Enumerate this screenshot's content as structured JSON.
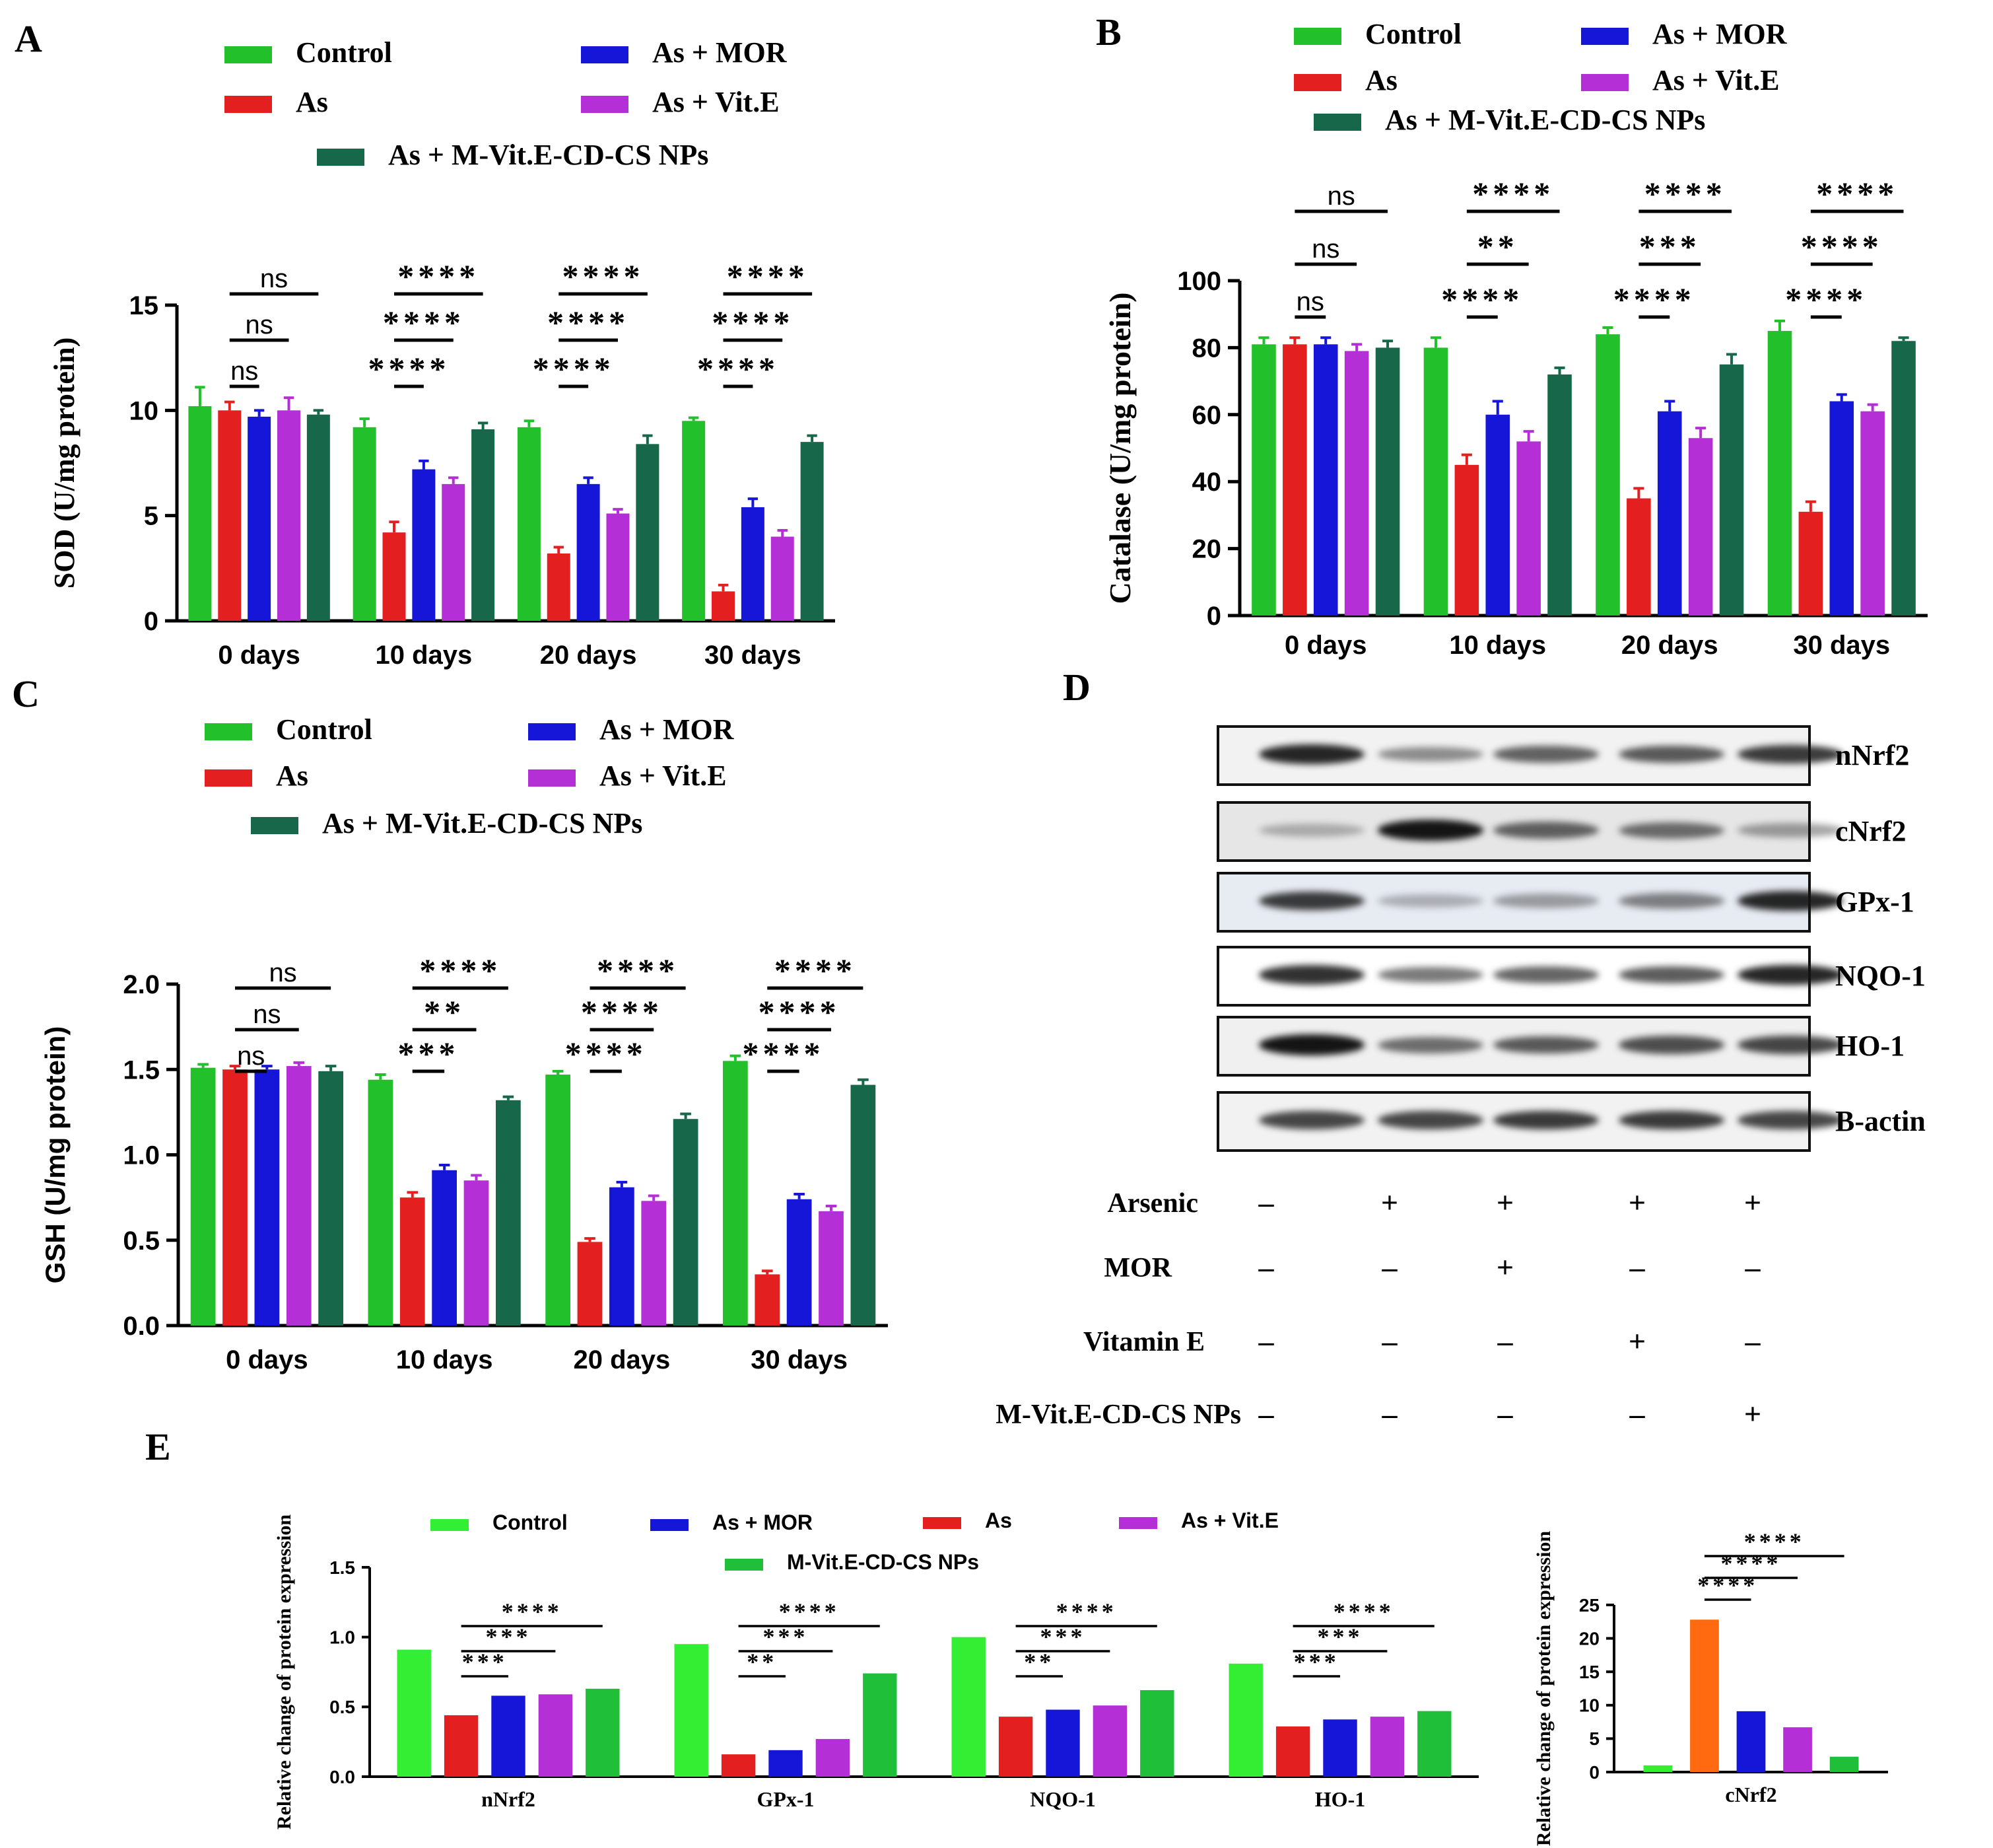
{
  "panel_letters": [
    "A",
    "B",
    "C",
    "D",
    "E"
  ],
  "colors": {
    "control": "#22c02a",
    "as": "#e41f1f",
    "mor": "#1616d8",
    "vite": "#b52fd6",
    "nps": "#17684a",
    "e_control": "#33ee33",
    "e_nps": "#1fbf3a",
    "e_as_cnrf2": "#ff6a10"
  },
  "chart_data": [
    {
      "panel": "A",
      "type": "bar",
      "ylabel": "SOD (U/mg protein)",
      "xlabel": "",
      "ylim": [
        0,
        15
      ],
      "yticks": [
        "0",
        "5",
        "10",
        "15"
      ],
      "categories": [
        "0 days",
        "10 days",
        "20 days",
        "30 days"
      ],
      "legend": [
        "Control",
        "As + MOR",
        "As",
        "As + Vit.E",
        "As + M-Vit.E-CD-CS NPs"
      ],
      "series": [
        {
          "name": "Control",
          "color_key": "control",
          "values": [
            10.2,
            9.2,
            9.2,
            9.5
          ],
          "errors": [
            0.9,
            0.4,
            0.3,
            0.15
          ]
        },
        {
          "name": "As",
          "color_key": "as",
          "values": [
            10.0,
            4.2,
            3.2,
            1.4
          ],
          "errors": [
            0.4,
            0.5,
            0.3,
            0.3
          ]
        },
        {
          "name": "As + MOR",
          "color_key": "mor",
          "values": [
            9.7,
            7.2,
            6.5,
            5.4
          ],
          "errors": [
            0.3,
            0.4,
            0.3,
            0.4
          ]
        },
        {
          "name": "As + Vit.E",
          "color_key": "vite",
          "values": [
            10.0,
            6.5,
            5.1,
            4.0
          ],
          "errors": [
            0.6,
            0.3,
            0.2,
            0.3
          ]
        },
        {
          "name": "As + M-Vit.E-CD-CS NPs",
          "color_key": "nps",
          "values": [
            9.8,
            9.1,
            8.4,
            8.5
          ],
          "errors": [
            0.2,
            0.3,
            0.4,
            0.3
          ]
        }
      ],
      "significance": [
        [
          "ns",
          "ns",
          "ns"
        ],
        [
          "****",
          "****",
          "****"
        ],
        [
          "****",
          "****",
          "****"
        ],
        [
          "****",
          "****",
          "****"
        ]
      ]
    },
    {
      "panel": "B",
      "type": "bar",
      "ylabel": "Catalase (U/mg protein)",
      "xlabel": "",
      "ylim": [
        0,
        100
      ],
      "yticks": [
        "0",
        "20",
        "40",
        "60",
        "80",
        "100"
      ],
      "categories": [
        "0 days",
        "10 days",
        "20 days",
        "30 days"
      ],
      "legend": [
        "Control",
        "As + MOR",
        "As",
        "As + Vit.E",
        "As + M-Vit.E-CD-CS NPs"
      ],
      "series": [
        {
          "name": "Control",
          "color_key": "control",
          "values": [
            81,
            80,
            84,
            85
          ],
          "errors": [
            2,
            3,
            2,
            3
          ]
        },
        {
          "name": "As",
          "color_key": "as",
          "values": [
            81,
            45,
            35,
            31
          ],
          "errors": [
            2,
            3,
            3,
            3
          ]
        },
        {
          "name": "As + MOR",
          "color_key": "mor",
          "values": [
            81,
            60,
            61,
            64
          ],
          "errors": [
            2,
            4,
            3,
            2
          ]
        },
        {
          "name": "As + Vit.E",
          "color_key": "vite",
          "values": [
            79,
            52,
            53,
            61
          ],
          "errors": [
            2,
            3,
            3,
            2
          ]
        },
        {
          "name": "As + M-Vit.E-CD-CS NPs",
          "color_key": "nps",
          "values": [
            80,
            72,
            75,
            82
          ],
          "errors": [
            2,
            2,
            3,
            1
          ]
        }
      ],
      "significance": [
        [
          "ns",
          "ns",
          "ns"
        ],
        [
          "****",
          "**",
          "****"
        ],
        [
          "****",
          "***",
          "****"
        ],
        [
          "****",
          "****",
          "****"
        ]
      ]
    },
    {
      "panel": "C",
      "type": "bar",
      "ylabel": "GSH (U/mg protein)",
      "xlabel": "",
      "ylim": [
        0,
        2.0
      ],
      "yticks": [
        "0.0",
        "0.5",
        "1.0",
        "1.5",
        "2.0"
      ],
      "categories": [
        "0 days",
        "10 days",
        "20 days",
        "30 days"
      ],
      "legend": [
        "Control",
        "As + MOR",
        "As",
        "As + Vit.E",
        "As + M-Vit.E-CD-CS NPs"
      ],
      "series": [
        {
          "name": "Control",
          "color_key": "control",
          "values": [
            1.51,
            1.44,
            1.47,
            1.55
          ],
          "errors": [
            0.02,
            0.03,
            0.02,
            0.03
          ]
        },
        {
          "name": "As",
          "color_key": "as",
          "values": [
            1.5,
            0.75,
            0.49,
            0.3
          ],
          "errors": [
            0.02,
            0.03,
            0.02,
            0.02
          ]
        },
        {
          "name": "As + MOR",
          "color_key": "mor",
          "values": [
            1.5,
            0.91,
            0.81,
            0.74
          ],
          "errors": [
            0.02,
            0.03,
            0.03,
            0.03
          ]
        },
        {
          "name": "As + Vit.E",
          "color_key": "vite",
          "values": [
            1.52,
            0.85,
            0.73,
            0.67
          ],
          "errors": [
            0.02,
            0.03,
            0.03,
            0.03
          ]
        },
        {
          "name": "As + M-Vit.E-CD-CS NPs",
          "color_key": "nps",
          "values": [
            1.49,
            1.32,
            1.21,
            1.41
          ],
          "errors": [
            0.03,
            0.02,
            0.03,
            0.03
          ]
        }
      ],
      "significance": [
        [
          "ns",
          "ns",
          "ns"
        ],
        [
          "***",
          "**",
          "****"
        ],
        [
          "****",
          "****",
          "****"
        ],
        [
          "****",
          "****",
          "****"
        ]
      ]
    },
    {
      "panel": "E-left",
      "type": "bar",
      "ylabel": "Relative change of protein expression",
      "xlabel": "",
      "ylim": [
        0,
        1.5
      ],
      "yticks": [
        "0.0",
        "0.5",
        "1.0",
        "1.5"
      ],
      "categories": [
        "nNrf2",
        "GPx-1",
        "NQO-1",
        "HO-1"
      ],
      "legend": [
        "Control",
        "As + MOR",
        "As",
        "As + Vit.E",
        "M-Vit.E-CD-CS NPs"
      ],
      "series": [
        {
          "name": "Control",
          "color_key": "e_control",
          "values": [
            0.91,
            0.95,
            1.0,
            0.81
          ]
        },
        {
          "name": "As",
          "color_key": "as",
          "values": [
            0.44,
            0.16,
            0.43,
            0.36
          ]
        },
        {
          "name": "As + MOR",
          "color_key": "mor",
          "values": [
            0.58,
            0.19,
            0.48,
            0.41
          ]
        },
        {
          "name": "As + Vit.E",
          "color_key": "vite",
          "values": [
            0.59,
            0.27,
            0.51,
            0.43
          ]
        },
        {
          "name": "M-Vit.E-CD-CS NPs",
          "color_key": "e_nps",
          "values": [
            0.63,
            0.74,
            0.62,
            0.47
          ]
        }
      ],
      "significance": [
        [
          "***",
          "***",
          "****"
        ],
        [
          "**",
          "***",
          "****"
        ],
        [
          "**",
          "***",
          "****"
        ],
        [
          "***",
          "***",
          "****"
        ]
      ]
    },
    {
      "panel": "E-right",
      "type": "bar",
      "ylabel": "Relative change of protein expression",
      "xlabel": "",
      "ylim": [
        0,
        25
      ],
      "yticks": [
        "0",
        "5",
        "10",
        "15",
        "20",
        "25"
      ],
      "categories": [
        "cNrf2"
      ],
      "series": [
        {
          "name": "Control",
          "color_key": "e_control",
          "values": [
            1.0
          ]
        },
        {
          "name": "As",
          "color_key": "e_as_cnrf2",
          "values": [
            22.8
          ]
        },
        {
          "name": "As + MOR",
          "color_key": "mor",
          "values": [
            9.1
          ]
        },
        {
          "name": "As + Vit.E",
          "color_key": "vite",
          "values": [
            6.7
          ]
        },
        {
          "name": "M-Vit.E-CD-CS NPs",
          "color_key": "e_nps",
          "values": [
            2.3
          ]
        }
      ],
      "significance": [
        [
          "****",
          "****",
          "****"
        ]
      ]
    }
  ],
  "western_blot": {
    "proteins": [
      "nNrf2",
      "cNrf2",
      "GPx-1",
      "NQO-1",
      "HO-1",
      "B-actin"
    ],
    "band_intensity": [
      [
        0.85,
        0.35,
        0.55,
        0.6,
        0.75
      ],
      [
        0.15,
        0.95,
        0.55,
        0.5,
        0.25
      ],
      [
        0.75,
        0.15,
        0.25,
        0.4,
        0.85
      ],
      [
        0.8,
        0.45,
        0.55,
        0.6,
        0.85
      ],
      [
        0.95,
        0.5,
        0.6,
        0.65,
        0.7
      ],
      [
        0.7,
        0.7,
        0.75,
        0.75,
        0.7
      ]
    ],
    "treatments": [
      {
        "label": "Arsenic",
        "signs": [
          "–",
          "+",
          "+",
          "+",
          "+"
        ]
      },
      {
        "label": "MOR",
        "signs": [
          "–",
          "–",
          "+",
          "–",
          "–"
        ]
      },
      {
        "label": "Vitamin E",
        "signs": [
          "–",
          "–",
          "–",
          "+",
          "–"
        ]
      },
      {
        "label": "M-Vit.E-CD-CS NPs",
        "signs": [
          "–",
          "–",
          "–",
          "–",
          "+"
        ]
      }
    ]
  }
}
